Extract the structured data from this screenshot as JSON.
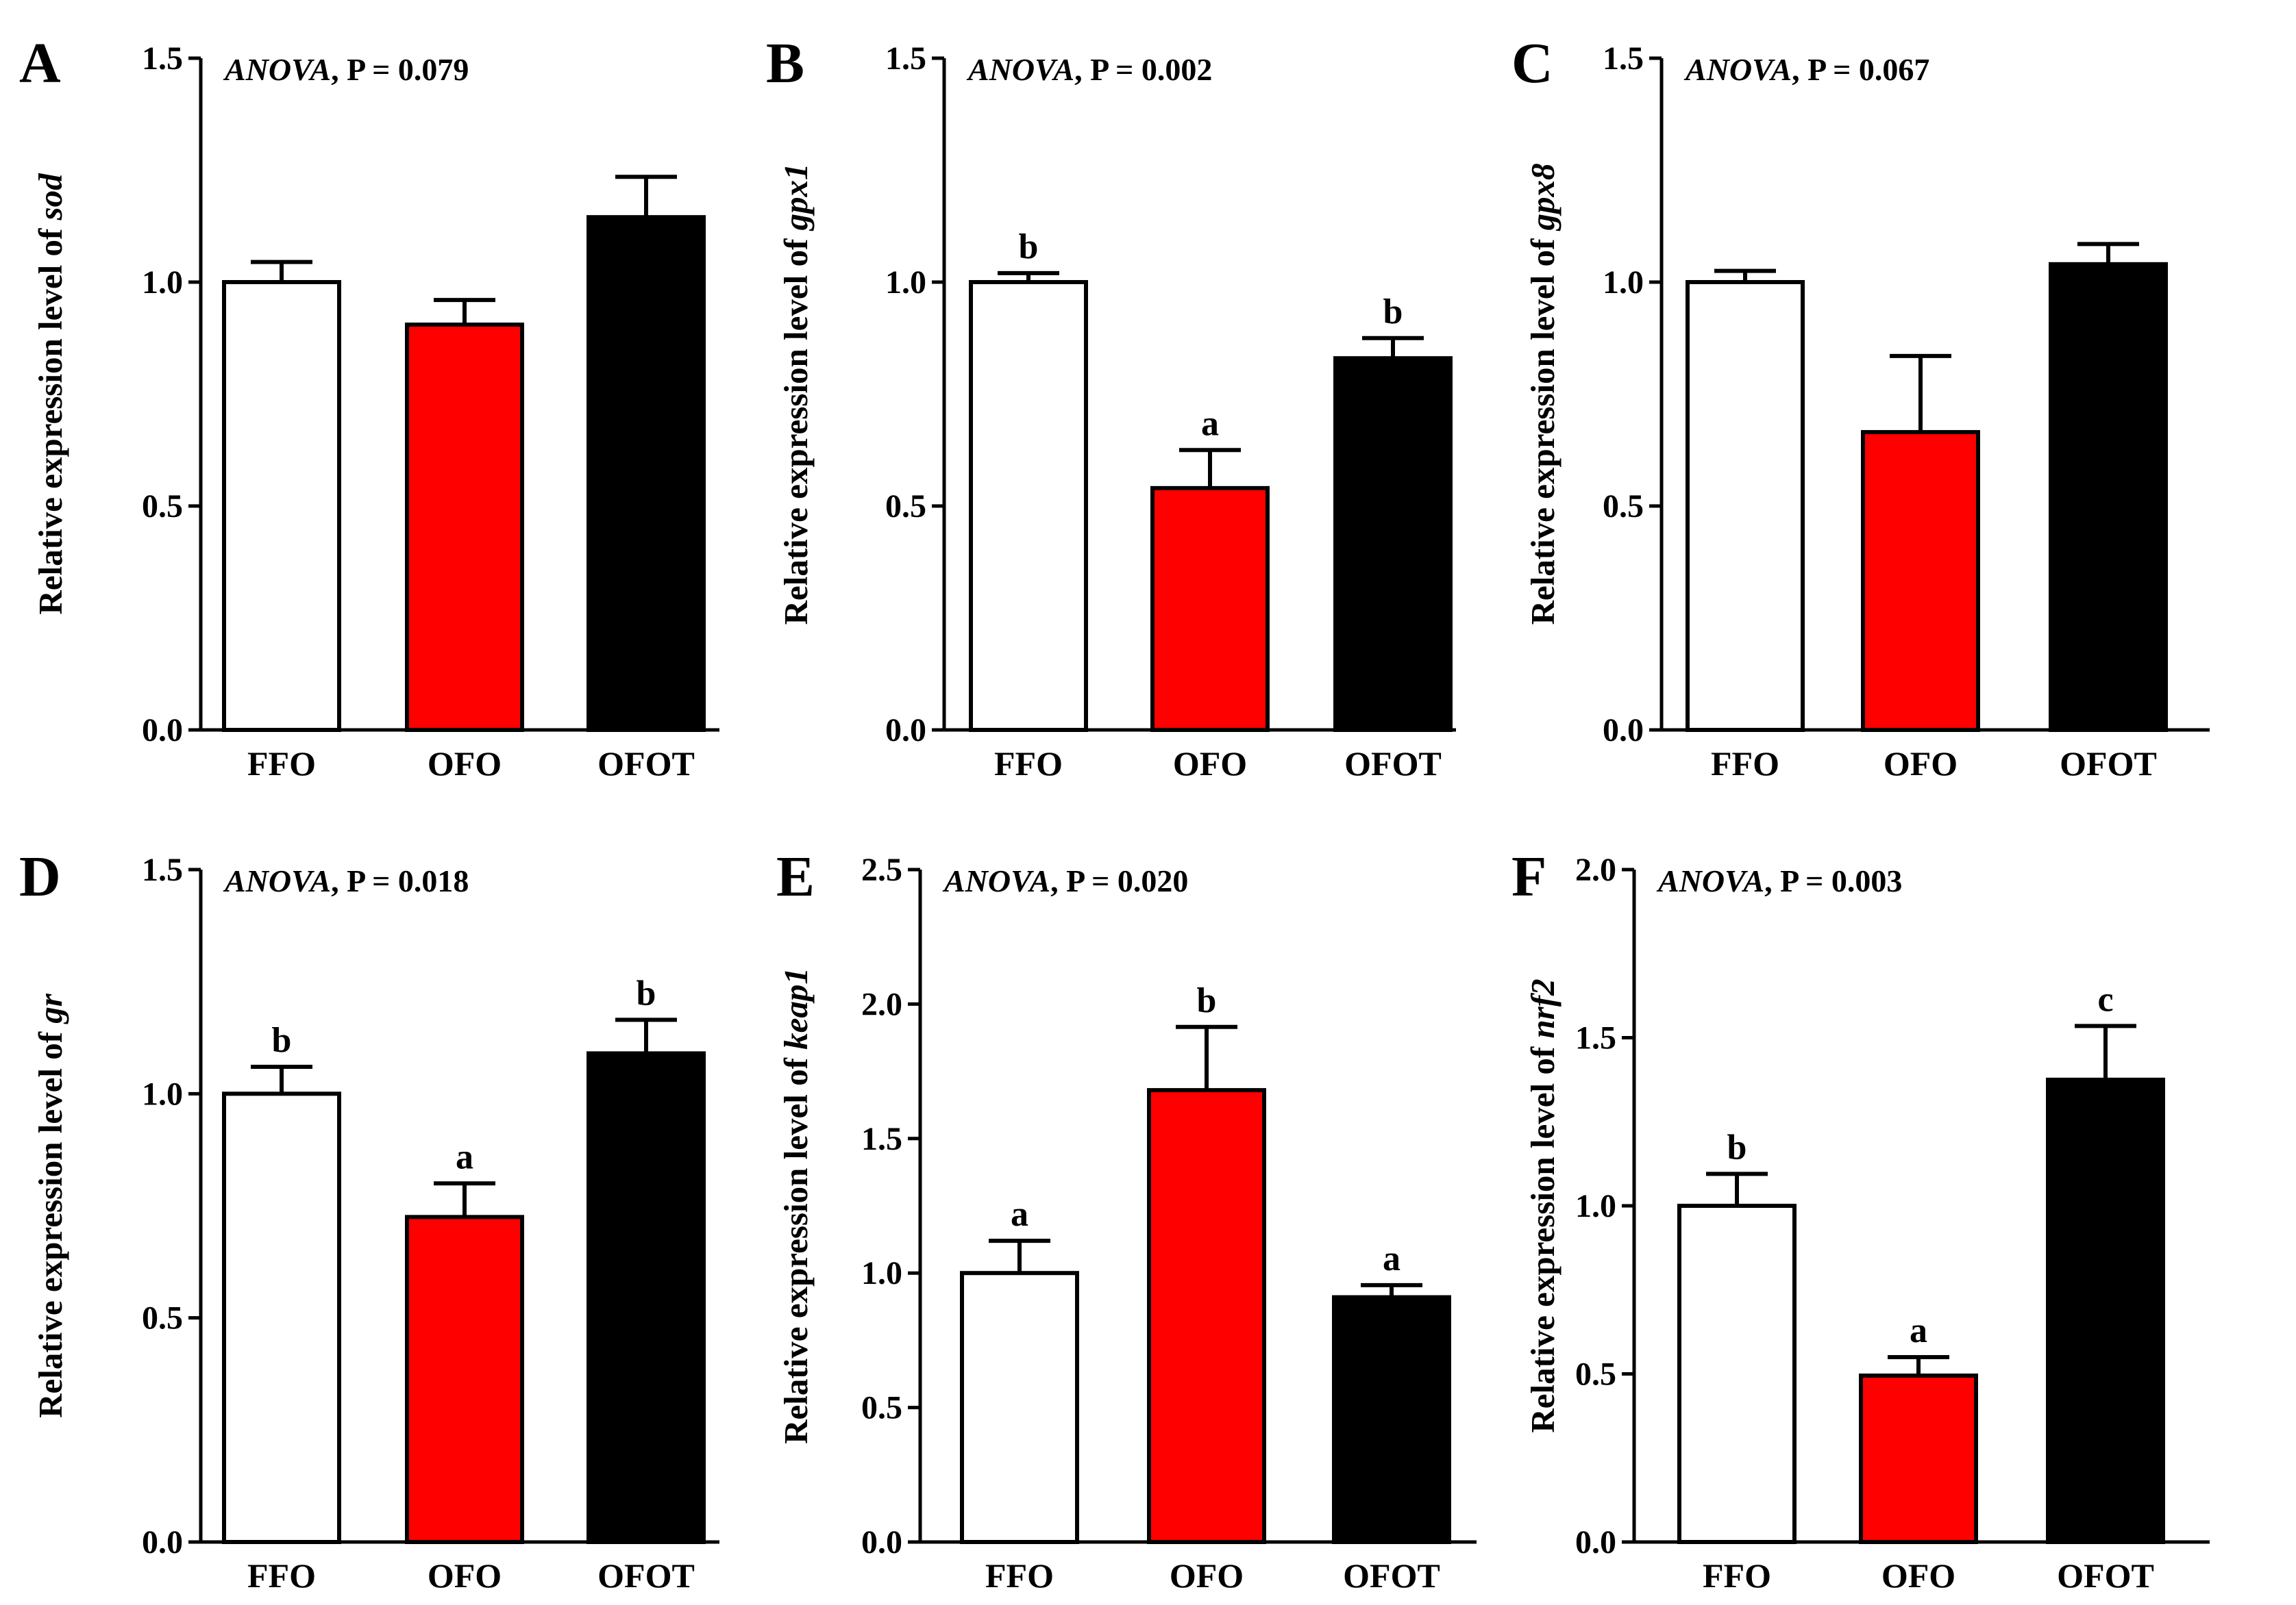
{
  "chart_data": [
    {
      "panel": "A",
      "type": "bar",
      "ylabel_prefix": "Relative expression level of ",
      "gene": "sod",
      "anova_label": "ANOVA",
      "p_text": ", P = 0.079",
      "ylim": [
        0,
        1.5
      ],
      "yticks": [
        "0.0",
        "0.5",
        "1.0",
        "1.5"
      ],
      "categories": [
        "FFO",
        "OFO",
        "OFOT"
      ],
      "values": [
        1.0,
        0.905,
        1.145
      ],
      "errors": [
        0.045,
        0.055,
        0.09
      ],
      "letters": [
        "",
        "",
        ""
      ],
      "colors": [
        "#ffffff",
        "#ff0000",
        "#000000"
      ]
    },
    {
      "panel": "B",
      "type": "bar",
      "ylabel_prefix": "Relative expression level of ",
      "gene": "gpx1",
      "anova_label": "ANOVA",
      "p_text": ", P = 0.002",
      "ylim": [
        0,
        1.5
      ],
      "yticks": [
        "0.0",
        "0.5",
        "1.0",
        "1.5"
      ],
      "categories": [
        "FFO",
        "OFO",
        "OFOT"
      ],
      "values": [
        1.0,
        0.54,
        0.83
      ],
      "errors": [
        0.02,
        0.085,
        0.045
      ],
      "letters": [
        "b",
        "a",
        "b"
      ],
      "colors": [
        "#ffffff",
        "#ff0000",
        "#000000"
      ]
    },
    {
      "panel": "C",
      "type": "bar",
      "ylabel_prefix": "Relative expression level of ",
      "gene": "gpx8",
      "anova_label": "ANOVA",
      "p_text": ", P = 0.067",
      "ylim": [
        0,
        1.5
      ],
      "yticks": [
        "0.0",
        "0.5",
        "1.0",
        "1.5"
      ],
      "categories": [
        "FFO",
        "OFO",
        "OFOT"
      ],
      "values": [
        1.0,
        0.665,
        1.04
      ],
      "errors": [
        0.025,
        0.17,
        0.045
      ],
      "letters": [
        "",
        "",
        ""
      ],
      "colors": [
        "#ffffff",
        "#ff0000",
        "#000000"
      ]
    },
    {
      "panel": "D",
      "type": "bar",
      "ylabel_prefix": "Relative expression level of ",
      "gene": "gr",
      "anova_label": "ANOVA",
      "p_text": ", P = 0.018",
      "ylim": [
        0,
        1.5
      ],
      "yticks": [
        "0.0",
        "0.5",
        "1.0",
        "1.5"
      ],
      "categories": [
        "FFO",
        "OFO",
        "OFOT"
      ],
      "values": [
        1.0,
        0.725,
        1.09
      ],
      "errors": [
        0.06,
        0.075,
        0.075
      ],
      "letters": [
        "b",
        "a",
        "b"
      ],
      "colors": [
        "#ffffff",
        "#ff0000",
        "#000000"
      ]
    },
    {
      "panel": "E",
      "type": "bar",
      "ylabel_prefix": "Relative expression level of ",
      "gene": "keap1",
      "anova_label": "ANOVA",
      "p_text": ", P = 0.020",
      "ylim": [
        0,
        2.5
      ],
      "yticks": [
        "0.0",
        "0.5",
        "1.0",
        "1.5",
        "2.0",
        "2.5"
      ],
      "categories": [
        "FFO",
        "OFO",
        "OFOT"
      ],
      "values": [
        1.0,
        1.68,
        0.91
      ],
      "errors": [
        0.12,
        0.235,
        0.045
      ],
      "letters": [
        "a",
        "b",
        "a"
      ],
      "colors": [
        "#ffffff",
        "#ff0000",
        "#000000"
      ]
    },
    {
      "panel": "F",
      "type": "bar",
      "ylabel_prefix": "Relative expression level of ",
      "gene": "nrf2",
      "anova_label": "ANOVA",
      "p_text": ", P = 0.003",
      "ylim": [
        0,
        2.0
      ],
      "yticks": [
        "0.0",
        "0.5",
        "1.0",
        "1.5",
        "2.0"
      ],
      "categories": [
        "FFO",
        "OFO",
        "OFOT"
      ],
      "values": [
        1.0,
        0.495,
        1.375
      ],
      "errors": [
        0.095,
        0.055,
        0.16
      ],
      "letters": [
        "b",
        "a",
        "c"
      ],
      "colors": [
        "#ffffff",
        "#ff0000",
        "#000000"
      ]
    }
  ]
}
